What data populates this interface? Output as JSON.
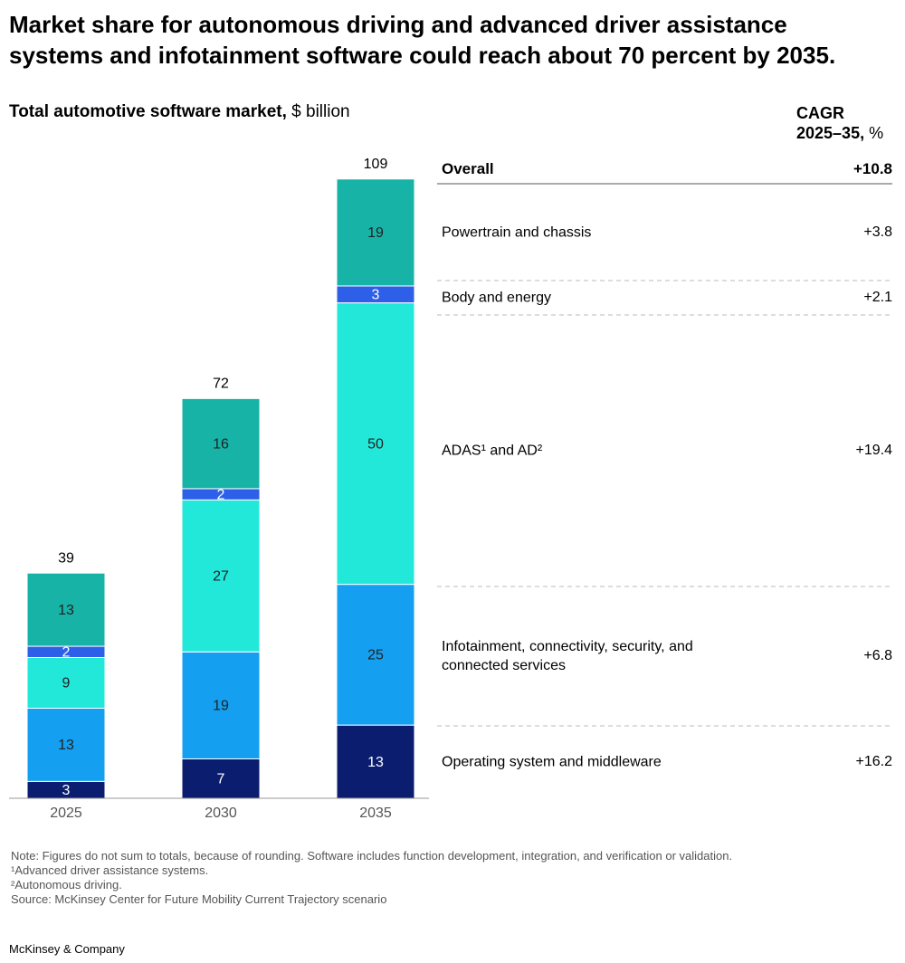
{
  "chart_data": {
    "type": "stacked-bar",
    "title": "Market share for autonomous driving and advanced driver assistance systems and infotainment software could reach about 70 percent by 2035.",
    "subtitle": "Total automotive software market,",
    "unit": "$ billion",
    "categories": [
      "2025",
      "2030",
      "2035"
    ],
    "series": [
      {
        "name": "Operating system and middleware",
        "color": "#0b1d6f",
        "values": [
          3,
          7,
          13
        ]
      },
      {
        "name": "Infotainment, connectivity, security, and connected services",
        "color": "#149ff0",
        "values": [
          13,
          19,
          25
        ]
      },
      {
        "name": "ADAS¹ and AD²",
        "color": "#22e8da",
        "values": [
          9,
          27,
          50
        ]
      },
      {
        "name": "Body and energy",
        "color": "#2e5fe8",
        "values": [
          2,
          2,
          3
        ]
      },
      {
        "name": "Powertrain and chassis",
        "color": "#17b3a7",
        "values": [
          13,
          16,
          19
        ]
      }
    ],
    "totals": [
      39,
      72,
      109
    ],
    "cagr": {
      "title_lines": [
        "CAGR",
        "2025–35,"
      ],
      "unit": "%",
      "overall_label": "Overall",
      "overall_value": 10.8,
      "overall_value_label": "+10.8",
      "values": [
        16.2,
        6.8,
        19.4,
        2.1,
        3.8
      ],
      "value_labels": [
        "+16.2",
        "+6.8",
        "+19.4",
        "+2.1",
        "+3.8"
      ]
    },
    "note": "Note: Figures do not sum to totals, because of rounding. Software includes function development, integration, and verification or validation.",
    "footnotes": [
      "¹Advanced driver assistance systems.",
      "²Autonomous driving."
    ],
    "source": "Source: McKinsey Center for Future Mobility Current Trajectory scenario",
    "brand": "McKinsey & Company"
  }
}
